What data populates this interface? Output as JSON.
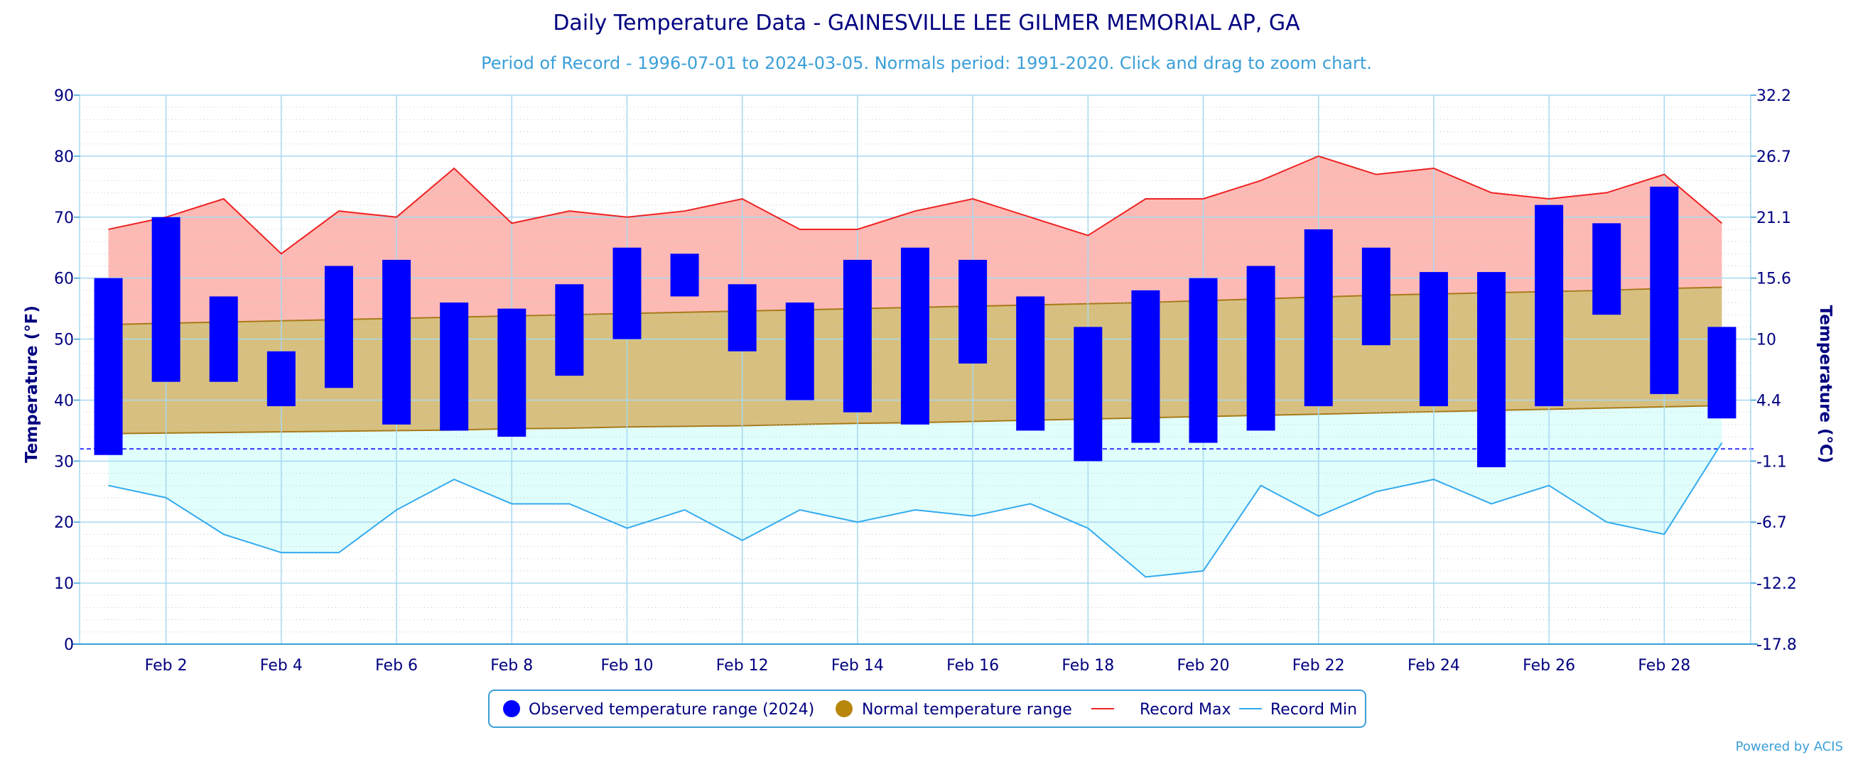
{
  "chart_data": {
    "type": "bar",
    "title": "Daily Temperature Data - GAINESVILLE LEE GILMER MEMORIAL AP, GA",
    "subtitle": "Period of Record - 1996-07-01 to 2024-03-05. Normals period: 1991-2020. Click and drag to zoom chart.",
    "ylabel": "Temperature (°F)",
    "ylabel_right": "Temperature (°C)",
    "ylim": [
      0,
      90
    ],
    "yticks": [
      0,
      10,
      20,
      30,
      40,
      50,
      60,
      70,
      80,
      90
    ],
    "yticks_right": [
      "-17.8",
      "-12.2",
      "-6.7",
      "-1.1",
      "4.4",
      "10",
      "15.6",
      "21.1",
      "26.7",
      "32.2"
    ],
    "xlim": [
      0.5,
      29.5
    ],
    "xtick_positions": [
      2,
      4,
      6,
      8,
      10,
      12,
      14,
      16,
      18,
      20,
      22,
      24,
      26,
      28
    ],
    "xtick_labels": [
      "Feb 2",
      "Feb 4",
      "Feb 6",
      "Feb 8",
      "Feb 10",
      "Feb 12",
      "Feb 14",
      "Feb 16",
      "Feb 18",
      "Feb 20",
      "Feb 22",
      "Feb 24",
      "Feb 26",
      "Feb 28"
    ],
    "freezing_line": 32,
    "grid": true,
    "legend_position": "bottom-center",
    "days": [
      1,
      2,
      3,
      4,
      5,
      6,
      7,
      8,
      9,
      10,
      11,
      12,
      13,
      14,
      15,
      16,
      17,
      18,
      19,
      20,
      21,
      22,
      23,
      24,
      25,
      26,
      27,
      28,
      29
    ],
    "series": [
      {
        "name": "Observed temperature range (2024)",
        "color": "#0000ff",
        "low": [
          31,
          43,
          43,
          39,
          42,
          36,
          35,
          34,
          44,
          50,
          57,
          48,
          40,
          38,
          36,
          46,
          35,
          30,
          33,
          33,
          35,
          39,
          49,
          39,
          29,
          39,
          54,
          41,
          37
        ],
        "high": [
          60,
          70,
          57,
          48,
          62,
          63,
          56,
          55,
          59,
          65,
          64,
          59,
          56,
          63,
          65,
          63,
          57,
          52,
          58,
          60,
          62,
          68,
          65,
          61,
          61,
          72,
          69,
          75,
          52
        ]
      },
      {
        "name": "Normal temperature range",
        "color": "#b8860b",
        "low": [
          34.5,
          34.6,
          34.7,
          34.8,
          34.9,
          35.0,
          35.1,
          35.3,
          35.4,
          35.6,
          35.7,
          35.8,
          36.0,
          36.2,
          36.3,
          36.5,
          36.7,
          36.9,
          37.1,
          37.3,
          37.5,
          37.7,
          37.9,
          38.1,
          38.3,
          38.5,
          38.7,
          38.9,
          39.1
        ],
        "high": [
          52.4,
          52.6,
          52.8,
          53.0,
          53.2,
          53.4,
          53.6,
          53.8,
          54.0,
          54.2,
          54.4,
          54.6,
          54.8,
          55.0,
          55.2,
          55.4,
          55.6,
          55.8,
          56.0,
          56.3,
          56.6,
          56.9,
          57.2,
          57.4,
          57.6,
          57.8,
          58.0,
          58.3,
          58.5
        ]
      },
      {
        "name": "Record Max",
        "color": "#ee2222",
        "values": [
          68,
          70,
          73,
          64,
          71,
          70,
          78,
          69,
          71,
          70,
          71,
          73,
          68,
          68,
          71,
          73,
          70,
          67,
          73,
          73,
          76,
          80,
          77,
          78,
          74,
          73,
          74,
          77,
          69
        ]
      },
      {
        "name": "Record Min",
        "color": "#33aaee",
        "values": [
          26,
          24,
          18,
          15,
          15,
          22,
          27,
          23,
          23,
          19,
          22,
          17,
          22,
          20,
          22,
          21,
          23,
          19,
          11,
          12,
          26,
          21,
          25,
          27,
          23,
          26,
          20,
          18,
          33
        ]
      }
    ],
    "colors": {
      "record_max_fill": "#fdbab5",
      "normal_fill": "#d7c07f",
      "record_min_fill": "#e0fefc",
      "grid": "#a8d8f0",
      "text": "#000080",
      "freezing_line": "#0000ff"
    }
  },
  "credit": "Powered by ACIS"
}
